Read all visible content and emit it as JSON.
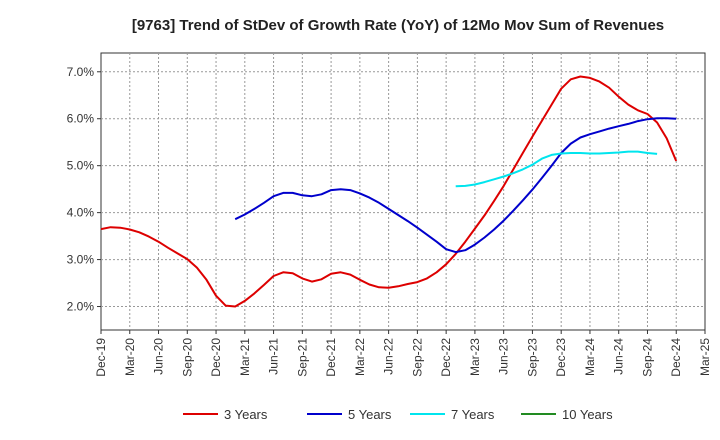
{
  "chart_data": {
    "type": "line",
    "title": "[9763]  Trend of StDev of Growth Rate (YoY) of 12Mo Mov Sum of Revenues",
    "xlabel": "",
    "ylabel": "",
    "x_ticks": [
      "Dec-19",
      "Mar-20",
      "Jun-20",
      "Sep-20",
      "Dec-20",
      "Mar-21",
      "Jun-21",
      "Sep-21",
      "Dec-21",
      "Mar-22",
      "Jun-22",
      "Sep-22",
      "Dec-22",
      "Mar-23",
      "Jun-23",
      "Sep-23",
      "Dec-23",
      "Mar-24",
      "Jun-24",
      "Sep-24",
      "Dec-24",
      "Mar-25"
    ],
    "y_ticks": [
      "2.0%",
      "3.0%",
      "4.0%",
      "5.0%",
      "6.0%",
      "7.0%"
    ],
    "y_tick_values": [
      2.0,
      3.0,
      4.0,
      5.0,
      6.0,
      7.0
    ],
    "ylim": [
      1.5,
      7.4
    ],
    "grid": true,
    "series": [
      {
        "name": "3 Years",
        "color": "#dd0000",
        "start_index": 0,
        "values": [
          3.65,
          3.69,
          3.68,
          3.64,
          3.58,
          3.49,
          3.38,
          3.25,
          3.13,
          3.01,
          2.83,
          2.57,
          2.23,
          2.02,
          2.0,
          2.12,
          2.28,
          2.46,
          2.65,
          2.73,
          2.71,
          2.6,
          2.53,
          2.58,
          2.7,
          2.73,
          2.68,
          2.57,
          2.47,
          2.41,
          2.4,
          2.43,
          2.48,
          2.52,
          2.6,
          2.73,
          2.9,
          3.12,
          3.38,
          3.66,
          3.94,
          4.25,
          4.57,
          4.92,
          5.27,
          5.62,
          5.96,
          6.3,
          6.64,
          6.84,
          6.9,
          6.87,
          6.79,
          6.66,
          6.47,
          6.3,
          6.18,
          6.1,
          5.92,
          5.58,
          5.1
        ]
      },
      {
        "name": "5 Years",
        "color": "#0000cc",
        "start_index": 14,
        "values": [
          3.86,
          3.96,
          4.08,
          4.21,
          4.35,
          4.42,
          4.42,
          4.37,
          4.35,
          4.39,
          4.48,
          4.5,
          4.48,
          4.41,
          4.32,
          4.21,
          4.08,
          3.95,
          3.82,
          3.68,
          3.53,
          3.38,
          3.22,
          3.16,
          3.2,
          3.32,
          3.47,
          3.64,
          3.83,
          4.04,
          4.26,
          4.49,
          4.74,
          5.0,
          5.27,
          5.47,
          5.6,
          5.67,
          5.73,
          5.79,
          5.84,
          5.89,
          5.95,
          5.99,
          6.01,
          6.01,
          6.0
        ]
      },
      {
        "name": "7 Years",
        "color": "#00e5ee",
        "start_index": 37,
        "values": [
          4.56,
          4.57,
          4.6,
          4.65,
          4.71,
          4.77,
          4.84,
          4.92,
          5.02,
          5.15,
          5.23,
          5.26,
          5.27,
          5.27,
          5.26,
          5.26,
          5.27,
          5.28,
          5.3,
          5.3,
          5.27,
          5.25
        ]
      },
      {
        "name": "10 Years",
        "color": "#228b22",
        "start_index": 0,
        "values": []
      }
    ]
  }
}
